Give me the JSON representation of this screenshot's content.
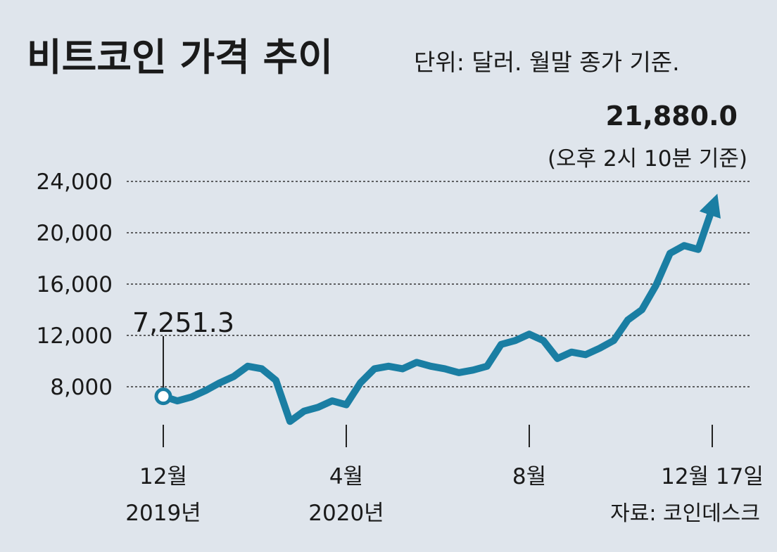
{
  "chart_data": {
    "type": "line",
    "title": "비트코인 가격 추이",
    "subtitle": "단위: 달러. 월말 종가 기준.",
    "source": "자료: 코인데스크",
    "start_label": "7,251.3",
    "end_label": "21,880.0",
    "end_note": "(오후 2시 10분 기준)",
    "color": "#1a7ea3",
    "categories": [
      "12월\n2019년",
      null,
      null,
      null,
      null,
      null,
      null,
      null,
      null,
      null,
      null,
      null,
      null,
      "4월\n2020년",
      null,
      null,
      null,
      null,
      null,
      null,
      null,
      null,
      null,
      null,
      null,
      null,
      "8월",
      null,
      null,
      null,
      null,
      null,
      null,
      null,
      null,
      null,
      null,
      null,
      null,
      "12월 17일"
    ],
    "values": [
      7251.3,
      6900,
      7200,
      7700,
      8300,
      8800,
      9600,
      9400,
      8500,
      5300,
      6100,
      6400,
      6900,
      6600,
      8300,
      9400,
      9600,
      9400,
      9900,
      9600,
      9400,
      9100,
      9300,
      9600,
      11300,
      11600,
      12100,
      11600,
      10200,
      10700,
      10500,
      11000,
      11600,
      13200,
      14000,
      15900,
      18400,
      19000,
      18700,
      21880
    ],
    "ylim": [
      4000,
      24000
    ],
    "yticks": [
      {
        "value": 8000,
        "label": "8,000"
      },
      {
        "value": 12000,
        "label": "12,000"
      },
      {
        "value": 16000,
        "label": "16,000"
      },
      {
        "value": 20000,
        "label": "20,000"
      },
      {
        "value": 24000,
        "label": "24,000"
      }
    ],
    "grid": true
  }
}
